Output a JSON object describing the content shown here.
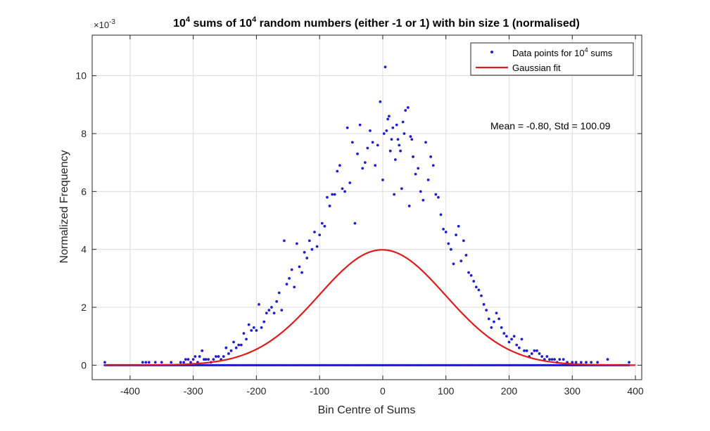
{
  "chart_data": {
    "type": "scatter",
    "title_parts": [
      "10",
      "4",
      " sums of 10",
      "4",
      " random numbers (either -1 or 1) with bin size 1 (normalised)"
    ],
    "xlabel": "Bin Centre of Sums",
    "ylabel": "Normalized Frequency",
    "y_exponent_label": "×10",
    "y_exponent_power": "-3",
    "xlim": [
      -460,
      410
    ],
    "ylim": [
      -0.0005,
      0.0114
    ],
    "x_ticks": [
      -400,
      -300,
      -200,
      -100,
      0,
      100,
      200,
      300,
      400
    ],
    "x_tick_labels": [
      "-400",
      "-300",
      "-200",
      "-100",
      "0",
      "100",
      "200",
      "300",
      "400"
    ],
    "y_ticks": [
      0,
      0.002,
      0.004,
      0.006,
      0.008,
      0.01
    ],
    "y_tick_labels": [
      "0",
      "2",
      "4",
      "6",
      "8",
      "10"
    ],
    "grid": true,
    "legend_position": "top-right",
    "legend": [
      {
        "label_parts": [
          "Data points for 10",
          "4",
          " sums"
        ],
        "marker": "dot",
        "color": "#1f1fcf"
      },
      {
        "label_parts": [
          "Gaussian fit"
        ],
        "marker": "line",
        "color": "#e01b1b"
      }
    ],
    "annotation": "Mean = -0.80, Std = 100.09",
    "series": [
      {
        "kind": "points",
        "color": "#1f1fcf",
        "note_zero_row": "dense row of zero-frequency bins from -440 to 390",
        "zero_row_range": [
          -440,
          390
        ],
        "points": [
          [
            -440,
            0.0001
          ],
          [
            -380,
            0.0001
          ],
          [
            -375,
            0.0001
          ],
          [
            -370,
            0.0001
          ],
          [
            -360,
            0.0001
          ],
          [
            -350,
            0.0001
          ],
          [
            -335,
            0.0001
          ],
          [
            -320,
            0.0001
          ],
          [
            -315,
            0.0001
          ],
          [
            -312,
            0.0002
          ],
          [
            -308,
            0.0002
          ],
          [
            -304,
            0.0001
          ],
          [
            -300,
            0.0002
          ],
          [
            -297,
            0.0003
          ],
          [
            -293,
            0.0001
          ],
          [
            -290,
            0.0003
          ],
          [
            -286,
            0.0005
          ],
          [
            -283,
            0.0002
          ],
          [
            -280,
            0.0002
          ],
          [
            -276,
            0.0002
          ],
          [
            -272,
            0.0001
          ],
          [
            -268,
            0.0002
          ],
          [
            -264,
            0.0003
          ],
          [
            -260,
            0.0003
          ],
          [
            -256,
            0.0002
          ],
          [
            -252,
            0.0003
          ],
          [
            -248,
            0.0006
          ],
          [
            -244,
            0.0004
          ],
          [
            -240,
            0.0005
          ],
          [
            -236,
            0.0008
          ],
          [
            -232,
            0.0006
          ],
          [
            -228,
            0.0007
          ],
          [
            -224,
            0.0007
          ],
          [
            -220,
            0.0011
          ],
          [
            -216,
            0.0009
          ],
          [
            -212,
            0.0014
          ],
          [
            -208,
            0.0012
          ],
          [
            -204,
            0.0013
          ],
          [
            -200,
            0.0012
          ],
          [
            -196,
            0.0021
          ],
          [
            -192,
            0.0013
          ],
          [
            -188,
            0.0015
          ],
          [
            -184,
            0.0018
          ],
          [
            -180,
            0.0019
          ],
          [
            -176,
            0.002
          ],
          [
            -172,
            0.0018
          ],
          [
            -168,
            0.0022
          ],
          [
            -164,
            0.0025
          ],
          [
            -160,
            0.0019
          ],
          [
            -156,
            0.0043
          ],
          [
            -152,
            0.0028
          ],
          [
            -148,
            0.003
          ],
          [
            -144,
            0.0033
          ],
          [
            -140,
            0.0027
          ],
          [
            -136,
            0.0042
          ],
          [
            -132,
            0.0034
          ],
          [
            -128,
            0.0032
          ],
          [
            -124,
            0.0039
          ],
          [
            -120,
            0.0037
          ],
          [
            -116,
            0.0043
          ],
          [
            -112,
            0.004
          ],
          [
            -108,
            0.0046
          ],
          [
            -104,
            0.0041
          ],
          [
            -100,
            0.0045
          ],
          [
            -96,
            0.0049
          ],
          [
            -92,
            0.0048
          ],
          [
            -88,
            0.0058
          ],
          [
            -84,
            0.0055
          ],
          [
            -80,
            0.0059
          ],
          [
            -76,
            0.0059
          ],
          [
            -72,
            0.0067
          ],
          [
            -68,
            0.0069
          ],
          [
            -64,
            0.0061
          ],
          [
            -60,
            0.006
          ],
          [
            -56,
            0.0082
          ],
          [
            -52,
            0.0063
          ],
          [
            -48,
            0.0077
          ],
          [
            -44,
            0.0049
          ],
          [
            -40,
            0.0073
          ],
          [
            -36,
            0.0083
          ],
          [
            -32,
            0.0068
          ],
          [
            -28,
            0.007
          ],
          [
            -24,
            0.0075
          ],
          [
            -20,
            0.0081
          ],
          [
            -16,
            0.0077
          ],
          [
            -12,
            0.0069
          ],
          [
            -8,
            0.0076
          ],
          [
            -4,
            0.0091
          ],
          [
            0,
            0.0064
          ],
          [
            2,
            0.008
          ],
          [
            4,
            0.0103
          ],
          [
            6,
            0.0081
          ],
          [
            8,
            0.0085
          ],
          [
            10,
            0.0086
          ],
          [
            12,
            0.0074
          ],
          [
            14,
            0.0078
          ],
          [
            16,
            0.0082
          ],
          [
            18,
            0.0059
          ],
          [
            20,
            0.0071
          ],
          [
            22,
            0.0083
          ],
          [
            24,
            0.0078
          ],
          [
            26,
            0.0076
          ],
          [
            28,
            0.0074
          ],
          [
            30,
            0.0061
          ],
          [
            32,
            0.0084
          ],
          [
            34,
            0.008
          ],
          [
            36,
            0.0088
          ],
          [
            40,
            0.0089
          ],
          [
            42,
            0.0055
          ],
          [
            44,
            0.0079
          ],
          [
            46,
            0.0078
          ],
          [
            48,
            0.0072
          ],
          [
            52,
            0.0066
          ],
          [
            56,
            0.0068
          ],
          [
            60,
            0.006
          ],
          [
            64,
            0.0057
          ],
          [
            68,
            0.0077
          ],
          [
            72,
            0.0064
          ],
          [
            76,
            0.0072
          ],
          [
            80,
            0.0069
          ],
          [
            84,
            0.0059
          ],
          [
            88,
            0.0058
          ],
          [
            92,
            0.0052
          ],
          [
            96,
            0.0047
          ],
          [
            100,
            0.0046
          ],
          [
            104,
            0.0042
          ],
          [
            108,
            0.004
          ],
          [
            112,
            0.0035
          ],
          [
            116,
            0.0045
          ],
          [
            120,
            0.0048
          ],
          [
            124,
            0.0036
          ],
          [
            128,
            0.0043
          ],
          [
            132,
            0.0038
          ],
          [
            136,
            0.0032
          ],
          [
            140,
            0.0031
          ],
          [
            144,
            0.0029
          ],
          [
            148,
            0.0027
          ],
          [
            152,
            0.0026
          ],
          [
            156,
            0.0024
          ],
          [
            160,
            0.0021
          ],
          [
            164,
            0.0019
          ],
          [
            168,
            0.0016
          ],
          [
            172,
            0.0013
          ],
          [
            176,
            0.0015
          ],
          [
            180,
            0.0018
          ],
          [
            184,
            0.0016
          ],
          [
            188,
            0.0013
          ],
          [
            192,
            0.0011
          ],
          [
            196,
            0.001
          ],
          [
            200,
            0.0008
          ],
          [
            204,
            0.0009
          ],
          [
            208,
            0.001
          ],
          [
            212,
            0.0007
          ],
          [
            216,
            0.0006
          ],
          [
            220,
            0.0009
          ],
          [
            224,
            0.0005
          ],
          [
            228,
            0.0005
          ],
          [
            232,
            0.0003
          ],
          [
            236,
            0.0004
          ],
          [
            240,
            0.0005
          ],
          [
            244,
            0.0005
          ],
          [
            248,
            0.0004
          ],
          [
            252,
            0.0003
          ],
          [
            256,
            0.0002
          ],
          [
            260,
            0.0003
          ],
          [
            264,
            0.0002
          ],
          [
            268,
            0.0002
          ],
          [
            272,
            0.0002
          ],
          [
            276,
            0.0001
          ],
          [
            280,
            0.0002
          ],
          [
            286,
            0.0002
          ],
          [
            292,
            0.0001
          ],
          [
            300,
            0.0001
          ],
          [
            306,
            0.0001
          ],
          [
            314,
            0.0001
          ],
          [
            322,
            0.0001
          ],
          [
            330,
            0.0001
          ],
          [
            340,
            0.0001
          ],
          [
            356,
            0.0002
          ],
          [
            390,
            0.0001
          ]
        ]
      },
      {
        "kind": "gaussian_line",
        "color": "#e01b1b",
        "mean": -0.8,
        "std": 100.09,
        "x_range": [
          -440,
          400
        ]
      }
    ]
  }
}
